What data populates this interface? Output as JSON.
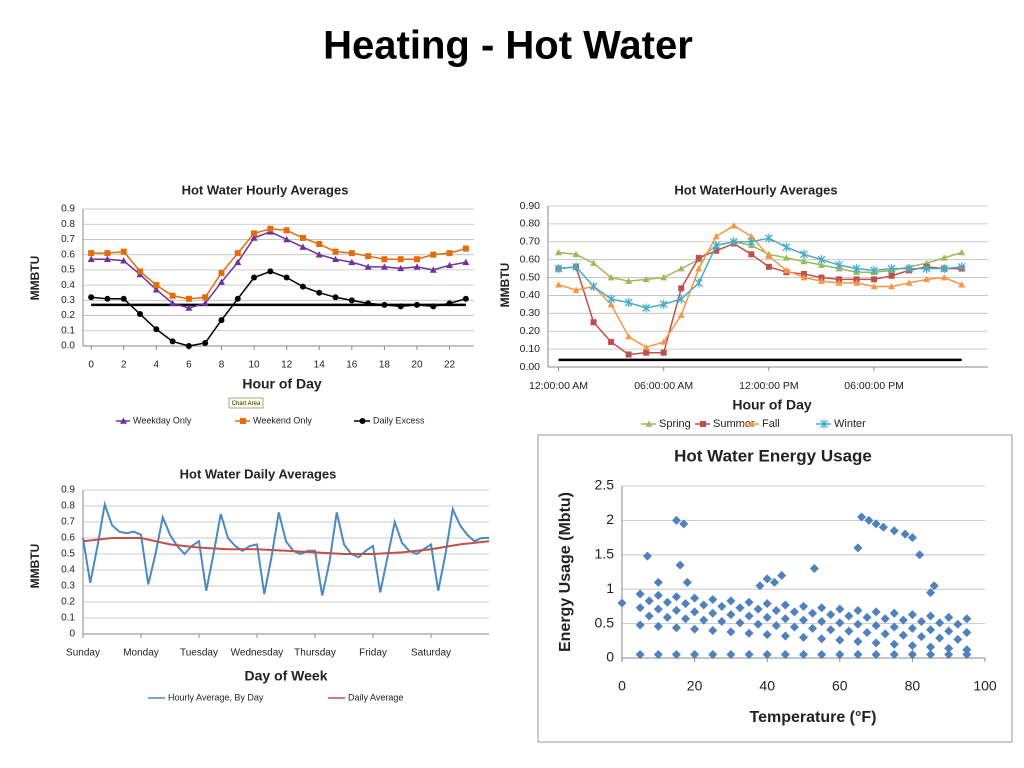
{
  "title": "Heating - Hot Water",
  "chart_data": [
    {
      "type": "line",
      "title": "Hot Water Hourly Averages",
      "x_label": "Hour of Day",
      "y_label": "MMBTU",
      "tooltip": "Chart Area",
      "x": [
        0,
        1,
        2,
        3,
        4,
        5,
        6,
        7,
        8,
        9,
        10,
        11,
        12,
        13,
        14,
        15,
        16,
        17,
        18,
        19,
        20,
        21,
        22,
        23
      ],
      "xlim": [
        -0.5,
        23.5
      ],
      "xticks": [
        0,
        2,
        4,
        6,
        8,
        10,
        12,
        14,
        16,
        18,
        20,
        22
      ],
      "ylim": [
        0,
        0.9
      ],
      "yticks": [
        {
          "value": 0,
          "label": "0.0"
        },
        0.1,
        0.2,
        0.3,
        0.4,
        0.5,
        0.6,
        0.7,
        0.8,
        0.9
      ],
      "grid": true,
      "legend": "bottom",
      "reference_line": 0.27,
      "series": [
        {
          "name": "Weekday Only",
          "color": "#7030a0",
          "marker": "triangle",
          "values": [
            0.57,
            0.57,
            0.56,
            0.47,
            0.37,
            0.28,
            0.25,
            0.28,
            0.42,
            0.55,
            0.71,
            0.75,
            0.7,
            0.65,
            0.6,
            0.57,
            0.55,
            0.52,
            0.52,
            0.51,
            0.52,
            0.5,
            0.53,
            0.55
          ]
        },
        {
          "name": "Weekend Only",
          "color": "#e46c0a",
          "marker": "square",
          "values": [
            0.61,
            0.61,
            0.62,
            0.49,
            0.4,
            0.33,
            0.31,
            0.32,
            0.48,
            0.61,
            0.74,
            0.77,
            0.76,
            0.71,
            0.67,
            0.62,
            0.61,
            0.59,
            0.57,
            0.57,
            0.57,
            0.6,
            0.61,
            0.64
          ]
        },
        {
          "name": "Daily Excess",
          "color": "#000000",
          "marker": "circle",
          "values": [
            0.32,
            0.31,
            0.31,
            0.21,
            0.11,
            0.03,
            0.0,
            0.02,
            0.17,
            0.31,
            0.45,
            0.49,
            0.45,
            0.39,
            0.35,
            0.32,
            0.3,
            0.28,
            0.27,
            0.26,
            0.27,
            0.26,
            0.28,
            0.31
          ]
        }
      ]
    },
    {
      "type": "line",
      "title": "Hot WaterHourly Averages",
      "x_label": "Hour of Day",
      "y_label": "MMBTU",
      "x": [
        0,
        1,
        2,
        3,
        4,
        5,
        6,
        7,
        8,
        9,
        10,
        11,
        12,
        13,
        14,
        15,
        16,
        17,
        18,
        19,
        20,
        21,
        22,
        23
      ],
      "xlim": [
        -0.6,
        24.5
      ],
      "xticks": [
        {
          "value": 0,
          "label": "12:00:00 AM"
        },
        {
          "value": 6,
          "label": "06:00:00 AM"
        },
        {
          "value": 12,
          "label": "12:00:00 PM"
        },
        {
          "value": 18,
          "label": "06:00:00 PM"
        }
      ],
      "ylim": [
        0,
        0.9
      ],
      "yticks": [
        {
          "value": 0,
          "label": "0.00"
        },
        {
          "value": 0.1,
          "label": "0.10"
        },
        {
          "value": 0.2,
          "label": "0.20"
        },
        {
          "value": 0.3,
          "label": "0.30"
        },
        {
          "value": 0.4,
          "label": "0.40"
        },
        {
          "value": 0.5,
          "label": "0.50"
        },
        {
          "value": 0.6,
          "label": "0.60"
        },
        {
          "value": 0.7,
          "label": "0.70"
        },
        {
          "value": 0.8,
          "label": "0.80"
        },
        {
          "value": 0.9,
          "label": "0.90"
        }
      ],
      "grid": true,
      "legend": "bottom",
      "reference_line": 0.04,
      "series": [
        {
          "name": "Spring",
          "color": "#9bbb59",
          "marker": "triangle",
          "values": [
            0.64,
            0.63,
            0.58,
            0.5,
            0.48,
            0.49,
            0.5,
            0.55,
            0.6,
            0.68,
            0.7,
            0.68,
            0.63,
            0.61,
            0.59,
            0.57,
            0.55,
            0.53,
            0.53,
            0.54,
            0.56,
            0.58,
            0.61,
            0.64
          ]
        },
        {
          "name": "Summer",
          "color": "#c0504d",
          "marker": "square",
          "values": [
            0.55,
            0.56,
            0.25,
            0.14,
            0.07,
            0.08,
            0.08,
            0.44,
            0.61,
            0.65,
            0.69,
            0.63,
            0.56,
            0.53,
            0.52,
            0.5,
            0.49,
            0.49,
            0.49,
            0.51,
            0.54,
            0.56,
            0.55,
            0.55
          ]
        },
        {
          "name": "Fall",
          "color": "#f79646",
          "marker": "triangle",
          "values": [
            0.46,
            0.43,
            0.45,
            0.35,
            0.17,
            0.11,
            0.14,
            0.29,
            0.55,
            0.73,
            0.79,
            0.73,
            0.62,
            0.54,
            0.5,
            0.48,
            0.47,
            0.47,
            0.45,
            0.45,
            0.47,
            0.49,
            0.5,
            0.46
          ]
        },
        {
          "name": "Winter",
          "color": "#4bacc6",
          "marker": "star",
          "values": [
            0.55,
            0.56,
            0.45,
            0.38,
            0.36,
            0.33,
            0.35,
            0.38,
            0.47,
            0.68,
            0.7,
            0.7,
            0.72,
            0.67,
            0.63,
            0.6,
            0.57,
            0.55,
            0.54,
            0.55,
            0.55,
            0.55,
            0.55,
            0.56
          ]
        }
      ]
    },
    {
      "type": "line",
      "title": "Hot Water Daily Averages",
      "x_label": "Day of Week",
      "y_label": "MMBTU",
      "xlim": [
        0,
        7
      ],
      "xticks": [
        {
          "value": 0,
          "label": "Sunday"
        },
        {
          "value": 1,
          "label": "Monday"
        },
        {
          "value": 2,
          "label": "Tuesday"
        },
        {
          "value": 3,
          "label": "Wednesday"
        },
        {
          "value": 4,
          "label": "Thursday"
        },
        {
          "value": 5,
          "label": "Friday"
        },
        {
          "value": 6,
          "label": "Saturday"
        }
      ],
      "ylim": [
        0,
        0.9
      ],
      "yticks": [
        0,
        0.1,
        0.2,
        0.3,
        0.4,
        0.5,
        0.6,
        0.7,
        0.8,
        0.9
      ],
      "grid": true,
      "legend": "bottom",
      "series": [
        {
          "name": "Hourly Average, By Day",
          "color": "#4a8ac4",
          "marker": "none",
          "x": [
            0,
            0.125,
            0.25,
            0.375,
            0.5,
            0.625,
            0.75,
            0.875,
            1,
            1.125,
            1.25,
            1.375,
            1.5,
            1.625,
            1.75,
            1.875,
            2,
            2.125,
            2.25,
            2.375,
            2.5,
            2.625,
            2.75,
            2.875,
            3,
            3.125,
            3.25,
            3.375,
            3.5,
            3.625,
            3.75,
            3.875,
            4,
            4.125,
            4.25,
            4.375,
            4.5,
            4.625,
            4.75,
            4.875,
            5,
            5.125,
            5.25,
            5.375,
            5.5,
            5.625,
            5.75,
            5.875,
            6,
            6.125,
            6.25,
            6.375,
            6.5,
            6.625,
            6.75,
            6.875,
            7
          ],
          "values": [
            0.6,
            0.32,
            0.55,
            0.81,
            0.68,
            0.64,
            0.63,
            0.64,
            0.62,
            0.31,
            0.5,
            0.73,
            0.62,
            0.55,
            0.5,
            0.55,
            0.58,
            0.27,
            0.5,
            0.75,
            0.6,
            0.55,
            0.52,
            0.55,
            0.56,
            0.25,
            0.48,
            0.76,
            0.58,
            0.52,
            0.5,
            0.52,
            0.52,
            0.24,
            0.45,
            0.76,
            0.56,
            0.5,
            0.48,
            0.52,
            0.55,
            0.26,
            0.48,
            0.7,
            0.57,
            0.52,
            0.5,
            0.53,
            0.56,
            0.27,
            0.5,
            0.78,
            0.68,
            0.62,
            0.58,
            0.6,
            0.6
          ]
        },
        {
          "name": "Daily Average",
          "color": "#c0504d",
          "marker": "none",
          "x": [
            0,
            0.5,
            1,
            1.5,
            2,
            2.5,
            3,
            3.5,
            4,
            4.5,
            5,
            5.5,
            6,
            6.5,
            7
          ],
          "values": [
            0.58,
            0.6,
            0.6,
            0.56,
            0.54,
            0.53,
            0.53,
            0.52,
            0.51,
            0.5,
            0.5,
            0.51,
            0.53,
            0.56,
            0.58
          ]
        }
      ]
    },
    {
      "type": "scatter",
      "title": "Hot Water Energy Usage",
      "x_label": "Temperature (°F)",
      "y_label": "Energy Usage (Mbtu)",
      "color": "#4f81bd",
      "marker": "diamond",
      "xlim": [
        0,
        100
      ],
      "xticks": [
        0,
        20,
        40,
        60,
        80,
        100
      ],
      "ylim": [
        0,
        2.5
      ],
      "yticks": [
        0,
        0.5,
        1,
        1.5,
        2,
        2.5
      ],
      "grid": true,
      "x": [
        5,
        5,
        5,
        5,
        10,
        10,
        10,
        10,
        15,
        15,
        15,
        15,
        20,
        20,
        20,
        20,
        25,
        25,
        25,
        25,
        30,
        30,
        30,
        30,
        35,
        35,
        35,
        35,
        40,
        40,
        40,
        40,
        45,
        45,
        45,
        45,
        50,
        50,
        50,
        50,
        55,
        55,
        55,
        55,
        60,
        60,
        60,
        60,
        65,
        65,
        65,
        65,
        70,
        70,
        70,
        70,
        75,
        75,
        75,
        75,
        80,
        80,
        80,
        80,
        85,
        85,
        85,
        85,
        90,
        90,
        90,
        90,
        95,
        95,
        95,
        95,
        7.5,
        7.5,
        12.5,
        12.5,
        17.5,
        17.5,
        22.5,
        22.5,
        27.5,
        27.5,
        32.5,
        32.5,
        37.5,
        37.5,
        42.5,
        42.5,
        47.5,
        47.5,
        52.5,
        52.5,
        57.5,
        57.5,
        62.5,
        62.5,
        67.5,
        67.5,
        72.5,
        72.5,
        77.5,
        77.5,
        82.5,
        82.5,
        87.5,
        87.5,
        92.5,
        92.5,
        0,
        7,
        15,
        17,
        16,
        10,
        18,
        44,
        53,
        66,
        68,
        70,
        72,
        75,
        78,
        80,
        65,
        82,
        86,
        85,
        40,
        42,
        38
      ],
      "values": [
        0.93,
        0.73,
        0.48,
        0.05,
        0.91,
        0.71,
        0.46,
        0.05,
        0.89,
        0.69,
        0.44,
        0.05,
        0.87,
        0.67,
        0.42,
        0.05,
        0.85,
        0.65,
        0.4,
        0.05,
        0.83,
        0.63,
        0.38,
        0.05,
        0.81,
        0.61,
        0.36,
        0.05,
        0.79,
        0.59,
        0.34,
        0.05,
        0.77,
        0.57,
        0.32,
        0.05,
        0.75,
        0.55,
        0.3,
        0.05,
        0.73,
        0.53,
        0.28,
        0.05,
        0.71,
        0.51,
        0.26,
        0.05,
        0.69,
        0.49,
        0.24,
        0.05,
        0.67,
        0.47,
        0.22,
        0.05,
        0.65,
        0.45,
        0.2,
        0.05,
        0.63,
        0.43,
        0.18,
        0.05,
        0.61,
        0.41,
        0.16,
        0.05,
        0.59,
        0.39,
        0.14,
        0.05,
        0.57,
        0.37,
        0.12,
        0.05,
        0.83,
        0.61,
        0.81,
        0.59,
        0.79,
        0.57,
        0.77,
        0.55,
        0.75,
        0.53,
        0.73,
        0.51,
        0.71,
        0.49,
        0.69,
        0.47,
        0.67,
        0.45,
        0.65,
        0.43,
        0.63,
        0.41,
        0.61,
        0.39,
        0.59,
        0.37,
        0.57,
        0.35,
        0.55,
        0.33,
        0.53,
        0.31,
        0.51,
        0.29,
        0.49,
        0.27,
        0.8,
        1.48,
        2.0,
        1.95,
        1.35,
        1.1,
        1.1,
        1.2,
        1.3,
        2.05,
        2.0,
        1.95,
        1.9,
        1.85,
        1.8,
        1.75,
        1.6,
        1.5,
        1.05,
        0.95,
        1.15,
        1.1,
        1.05
      ]
    }
  ]
}
